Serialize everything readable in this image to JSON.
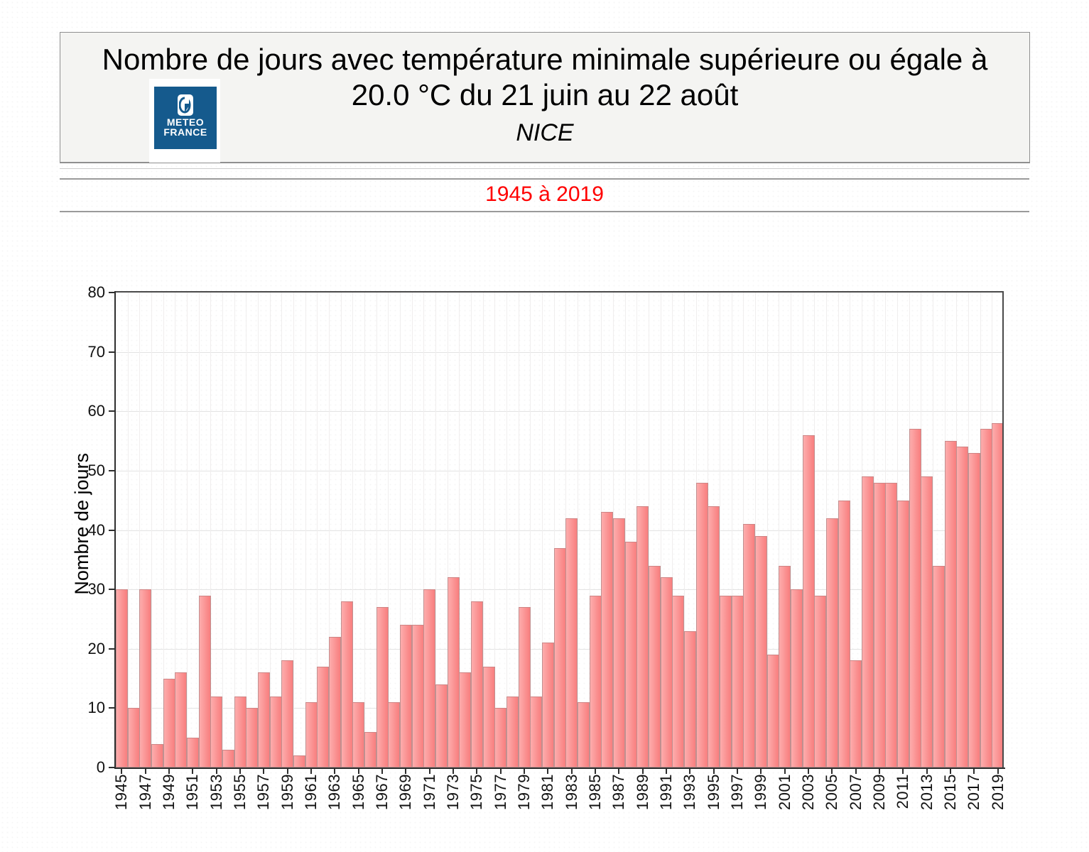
{
  "header": {
    "title_line1": "Nombre de jours avec température minimale supérieure ou égale à",
    "title_line2": "20.0 °C du 21 juin au 22 août",
    "station": "NICE",
    "period": "1945 à 2019",
    "logo": {
      "line1": "METEO",
      "line2": "FRANCE",
      "icon": "meteo-france-logo",
      "blue": "#155a8d"
    }
  },
  "colors": {
    "accent_red": "#ff0000",
    "bar_light": "#fdadad",
    "bar_dark": "#f87e7e",
    "header_bg": "#f4f4f2"
  },
  "chart_data": {
    "type": "bar",
    "title": "Nombre de jours avec température minimale supérieure ou égale à 20.0 °C du 21 juin au 22 août",
    "subtitle": "NICE",
    "period": "1945 à 2019",
    "xlabel": "",
    "ylabel": "Nombre de jours",
    "ylim": [
      0,
      80
    ],
    "ytick_step": 10,
    "yticks": [
      0,
      10,
      20,
      30,
      40,
      50,
      60,
      70,
      80
    ],
    "xtick_every": 2,
    "grid": true,
    "legend": "none",
    "bar_color_light": "#fdadad",
    "bar_color_dark": "#f87e7e",
    "categories": [
      1945,
      1946,
      1947,
      1948,
      1949,
      1950,
      1951,
      1952,
      1953,
      1954,
      1955,
      1956,
      1957,
      1958,
      1959,
      1960,
      1961,
      1962,
      1963,
      1964,
      1965,
      1966,
      1967,
      1968,
      1969,
      1970,
      1971,
      1972,
      1973,
      1974,
      1975,
      1976,
      1977,
      1978,
      1979,
      1980,
      1981,
      1982,
      1983,
      1984,
      1985,
      1986,
      1987,
      1988,
      1989,
      1990,
      1991,
      1992,
      1993,
      1994,
      1995,
      1996,
      1997,
      1998,
      1999,
      2000,
      2001,
      2002,
      2003,
      2004,
      2005,
      2006,
      2007,
      2008,
      2009,
      2010,
      2011,
      2012,
      2013,
      2014,
      2015,
      2016,
      2017,
      2018,
      2019
    ],
    "values": [
      30,
      10,
      30,
      4,
      15,
      16,
      5,
      29,
      12,
      3,
      12,
      10,
      16,
      12,
      18,
      2,
      11,
      17,
      22,
      28,
      11,
      6,
      27,
      11,
      24,
      24,
      30,
      14,
      32,
      16,
      28,
      17,
      10,
      12,
      27,
      12,
      21,
      37,
      42,
      11,
      29,
      43,
      42,
      38,
      44,
      34,
      32,
      29,
      23,
      48,
      44,
      29,
      29,
      41,
      39,
      19,
      34,
      30,
      56,
      29,
      42,
      45,
      18,
      49,
      48,
      48,
      45,
      57,
      49,
      34,
      55,
      54,
      53,
      57,
      58
    ]
  }
}
